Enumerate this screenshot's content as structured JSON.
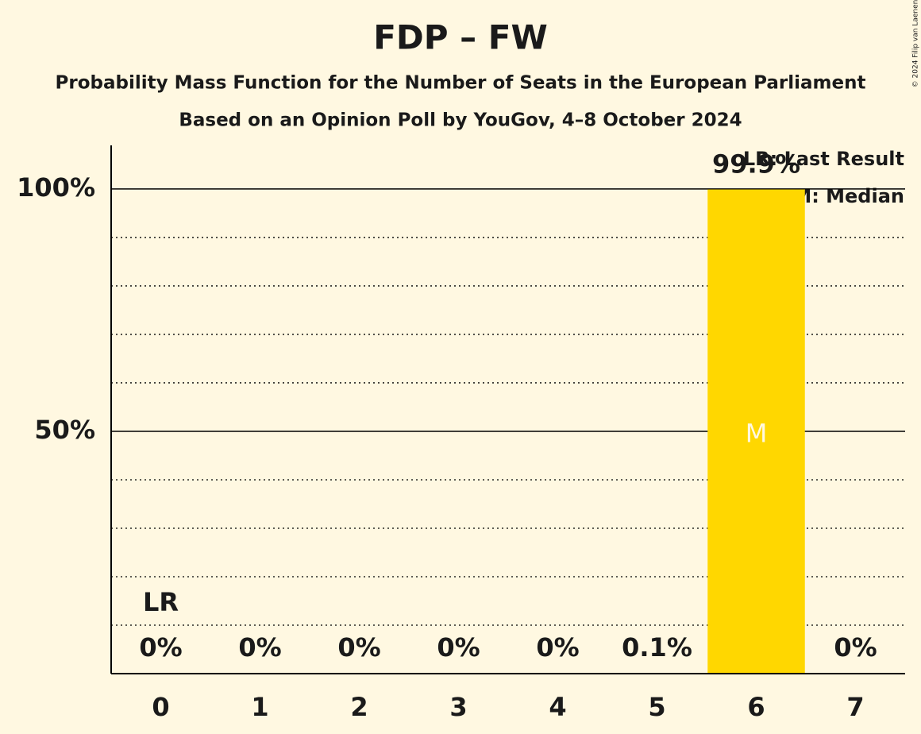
{
  "chart_data": {
    "type": "bar",
    "title": "FDP – FW",
    "subtitle": "Probability Mass Function for the Number of Seats in the European Parliament",
    "subtitle2": "Based on an Opinion Poll by YouGov, 4–8 October 2024",
    "credit": "© 2024 Filip van Laenen",
    "categories": [
      "0",
      "1",
      "2",
      "3",
      "4",
      "5",
      "6",
      "7"
    ],
    "values": [
      0,
      0,
      0,
      0,
      0,
      0.1,
      99.9,
      0
    ],
    "value_labels": [
      "0%",
      "0%",
      "0%",
      "0%",
      "0%",
      "0.1%",
      "99.9%",
      "0%"
    ],
    "color": "#FFD700",
    "ylim": [
      0,
      109
    ],
    "yticks": [
      {
        "value": 50,
        "label": "50%"
      },
      {
        "value": 100,
        "label": "100%"
      }
    ],
    "minor_yticks": [
      10,
      20,
      30,
      40,
      60,
      70,
      80,
      90
    ],
    "grid": true,
    "last_result": {
      "category": "0",
      "label": "LR"
    },
    "median": {
      "category": "6",
      "label": "M"
    },
    "legend": [
      "LR: Last Result",
      "M: Median"
    ]
  }
}
